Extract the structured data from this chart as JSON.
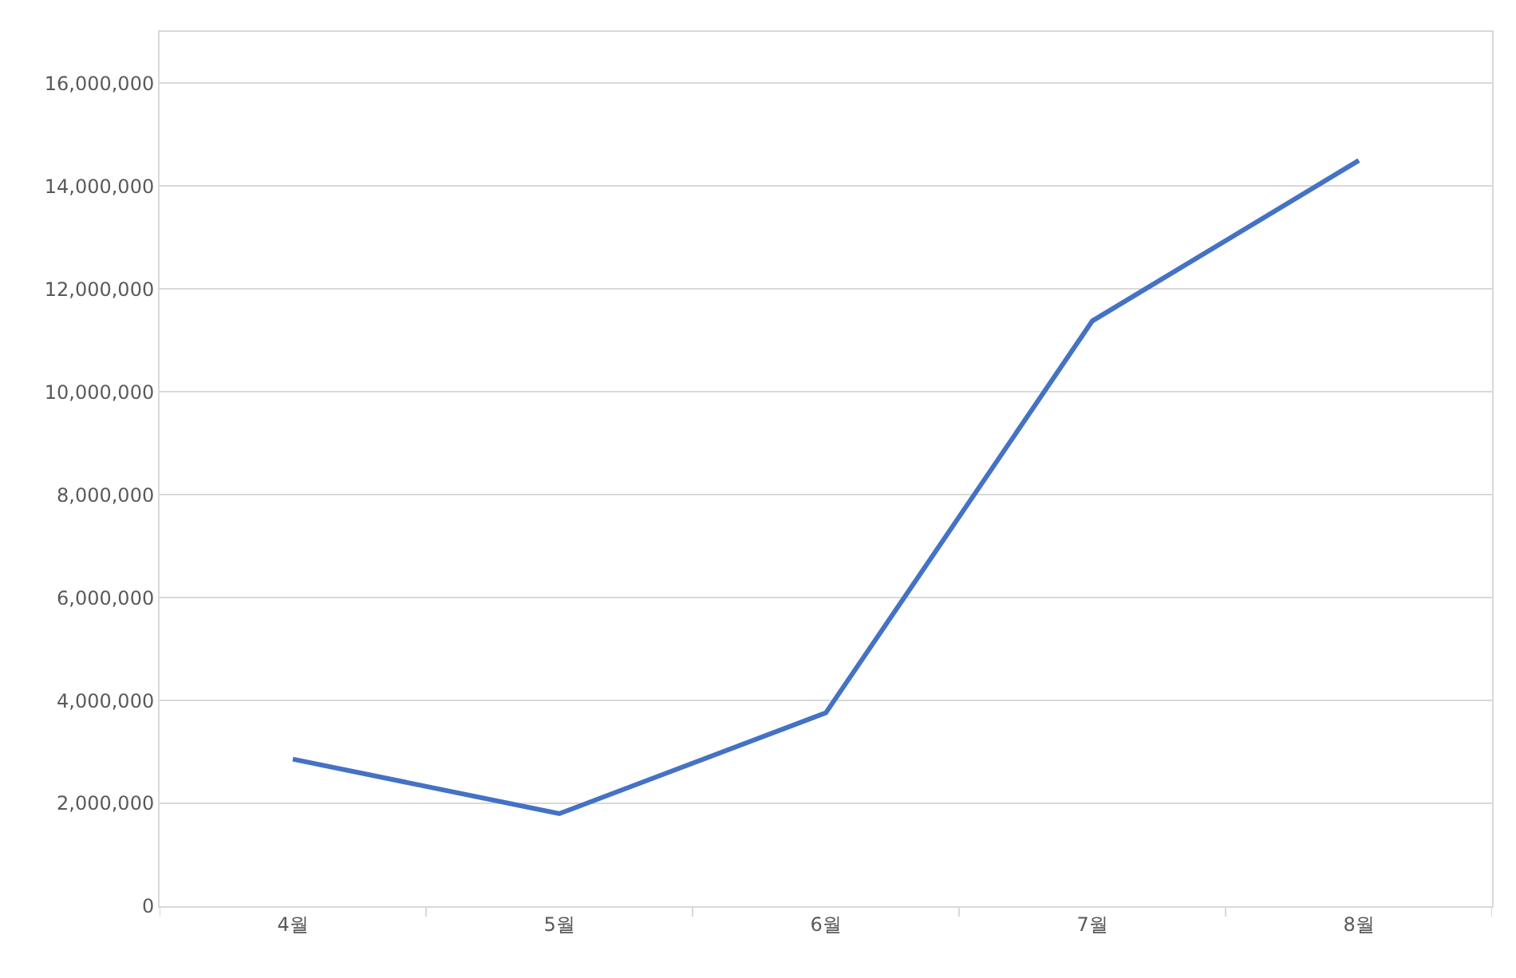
{
  "chart_data": {
    "type": "line",
    "categories": [
      "4월",
      "5월",
      "6월",
      "7월",
      "8월"
    ],
    "series": [
      {
        "color": "#4472c4",
        "values": [
          2860000,
          1800000,
          3760000,
          11380000,
          14500000
        ]
      }
    ],
    "ylim": [
      0,
      17000000
    ],
    "yticks": [
      {
        "value": 0,
        "label": "0"
      },
      {
        "value": 2000000,
        "label": "2,000,000"
      },
      {
        "value": 4000000,
        "label": "4,000,000"
      },
      {
        "value": 6000000,
        "label": "6,000,000"
      },
      {
        "value": 8000000,
        "label": "8,000,000"
      },
      {
        "value": 10000000,
        "label": "10,000,000"
      },
      {
        "value": 12000000,
        "label": "12,000,000"
      },
      {
        "value": 14000000,
        "label": "14,000,000"
      },
      {
        "value": 16000000,
        "label": "16,000,000"
      }
    ],
    "grid": "y",
    "marker": "none",
    "line_style": "solid"
  }
}
